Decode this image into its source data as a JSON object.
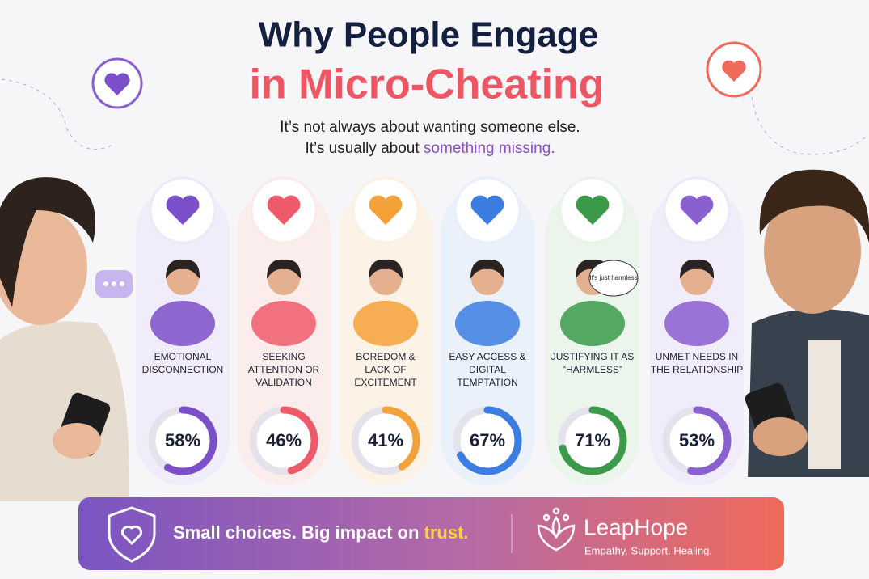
{
  "header": {
    "title_line1": "Why People Engage",
    "title_line2": "in Micro-Cheating",
    "subtitle_line1": "It’s not always about wanting someone else.",
    "subtitle_line2_start": "It’s usually about ",
    "subtitle_line2_highlight": "something missing."
  },
  "items": [
    {
      "label_lines": [
        "EMOTIONAL",
        "DISCONNECTION"
      ],
      "value": 58,
      "value_label": "58%",
      "color": "#7b4fc9",
      "tint": "#efe8fa"
    },
    {
      "label_lines": [
        "SEEKING",
        "ATTENTION OR",
        "VALIDATION"
      ],
      "value": 46,
      "value_label": "46%",
      "color": "#ef5a6a",
      "tint": "#fde9ea"
    },
    {
      "label_lines": [
        "BOREDOM &",
        "LACK OF",
        "EXCITEMENT"
      ],
      "value": 41,
      "value_label": "41%",
      "color": "#f4a13a",
      "tint": "#fdf0e0"
    },
    {
      "label_lines": [
        "EASY ACCESS &",
        "DIGITAL",
        "TEMPTATION"
      ],
      "value": 67,
      "value_label": "67%",
      "color": "#3b7de0",
      "tint": "#e6effb"
    },
    {
      "label_lines": [
        "JUSTIFYING IT AS",
        "“HARMLESS”"
      ],
      "value": 71,
      "value_label": "71%",
      "color": "#3a9a4a",
      "tint": "#e8f4e8"
    },
    {
      "label_lines": [
        "UNMET NEEDS IN",
        "THE RELATIONSHIP"
      ],
      "value": 53,
      "value_label": "53%",
      "color": "#8a5fd0",
      "tint": "#efe8fa"
    }
  ],
  "bubble_text": "It's just harmless",
  "footer": {
    "tagline_start": "Small choices. Big impact on ",
    "tagline_highlight": "trust.",
    "brand": "LeapHope",
    "brand_tagline": "Empathy. Support. Healing."
  }
}
